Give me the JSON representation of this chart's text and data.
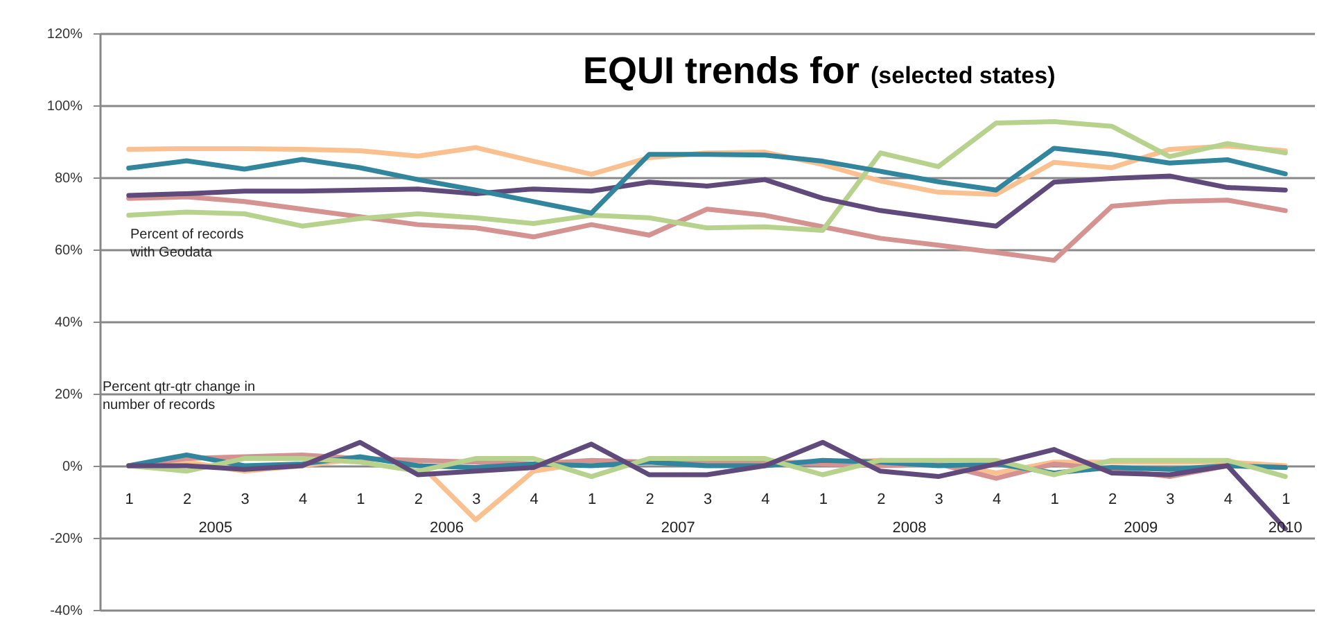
{
  "chart_data": {
    "type": "line",
    "title": "EQUI trends for",
    "subtitle": "(selected states)",
    "annotations": [
      "Percent of records with Geodata",
      "Percent qtr-qtr change in number of records",
      "2005",
      "2006",
      "2007",
      "2008",
      "2009",
      "2010"
    ],
    "categories": [
      "1",
      "2",
      "3",
      "4",
      "1",
      "2",
      "3",
      "4",
      "1",
      "2",
      "3",
      "4",
      "1",
      "2",
      "3",
      "4",
      "1",
      "2",
      "3",
      "4",
      "1"
    ],
    "series": [
      {
        "color": "#fac08f",
        "values": [
          87.8,
          88,
          88,
          87.8,
          87.4,
          85.9,
          88.3,
          84.5,
          80.9,
          85.5,
          86.8,
          87,
          83.6,
          79,
          75.9,
          75.3,
          84.2,
          82.7,
          87.8,
          88.7,
          87.4
        ]
      },
      {
        "color": "#d49290",
        "values": [
          74.2,
          74.6,
          73.3,
          71.2,
          69.1,
          66.9,
          66,
          63.5,
          66.9,
          64,
          71.2,
          69.5,
          66.3,
          63.1,
          61.2,
          59.2,
          57,
          72,
          73.3,
          73.7,
          70.8
        ]
      },
      {
        "color": "#b6d28c",
        "values": [
          69.5,
          70.4,
          69.9,
          66.5,
          68.6,
          69.9,
          68.8,
          67.2,
          69.5,
          68.8,
          66,
          66.3,
          65.3,
          86.8,
          83,
          95.1,
          95.5,
          94.2,
          85.8,
          89.4,
          86.8
        ]
      },
      {
        "color": "#604a7b",
        "values": [
          75,
          75.5,
          76.2,
          76.2,
          76.5,
          76.8,
          75.5,
          76.8,
          76.2,
          78.7,
          77.6,
          79.4,
          74.2,
          70.8,
          68.6,
          66.5,
          78.7,
          79.7,
          80.4,
          77.2,
          76.5
        ]
      },
      {
        "color": "#31859c",
        "values": [
          82.6,
          84.6,
          82.3,
          85,
          82.7,
          79.4,
          76.5,
          73.3,
          70.1,
          86.4,
          86.4,
          86.2,
          84.5,
          81.7,
          78.8,
          76.5,
          88.1,
          86.4,
          84,
          84.9,
          81
        ]
      },
      {
        "color": "#fac08f",
        "values": [
          0,
          1,
          -1.5,
          0,
          2,
          1,
          -15,
          -1.5,
          1,
          1,
          1,
          1,
          1,
          1.5,
          1,
          -2,
          1,
          1,
          1,
          1,
          0
        ]
      },
      {
        "color": "#d49290",
        "values": [
          0,
          2,
          2.5,
          3,
          2,
          1.5,
          1,
          0.5,
          1.5,
          1,
          1,
          1,
          0.5,
          0,
          0.5,
          -3.5,
          0.5,
          -1,
          -3,
          0,
          -0.5
        ]
      },
      {
        "color": "#31859c",
        "values": [
          0,
          3,
          0,
          0.5,
          2.5,
          0,
          -0.5,
          0.5,
          0,
          1,
          0,
          0,
          1.5,
          1,
          0,
          0.5,
          -2,
          -0.5,
          -1,
          0,
          -0.5
        ]
      },
      {
        "color": "#b6d28c",
        "values": [
          0,
          -1.5,
          2,
          2,
          1,
          -1.5,
          2,
          2,
          -3,
          2,
          2,
          2,
          -2.5,
          1.5,
          1.5,
          1.5,
          -2.5,
          1.5,
          1.5,
          1.5,
          -3
        ]
      },
      {
        "color": "#604a7b",
        "values": [
          0,
          0,
          -1,
          0,
          6.5,
          -2.5,
          -1.5,
          -0.5,
          6,
          -2.5,
          -2.5,
          0,
          6.5,
          -1.5,
          -3,
          0.5,
          4.5,
          -2,
          -2.5,
          0,
          -17.5
        ]
      }
    ],
    "ylim": [
      -40,
      120
    ],
    "yticks": [
      {
        "value": -40,
        "label": "-40%"
      },
      {
        "value": -20,
        "label": "-20%"
      },
      {
        "value": 0,
        "label": "0%"
      },
      {
        "value": 20,
        "label": "20%"
      },
      {
        "value": 40,
        "label": "40%"
      },
      {
        "value": 60,
        "label": "60%"
      },
      {
        "value": 80,
        "label": "80%"
      },
      {
        "value": 100,
        "label": "100%"
      },
      {
        "value": 120,
        "label": "120%"
      }
    ],
    "grid": "y"
  }
}
